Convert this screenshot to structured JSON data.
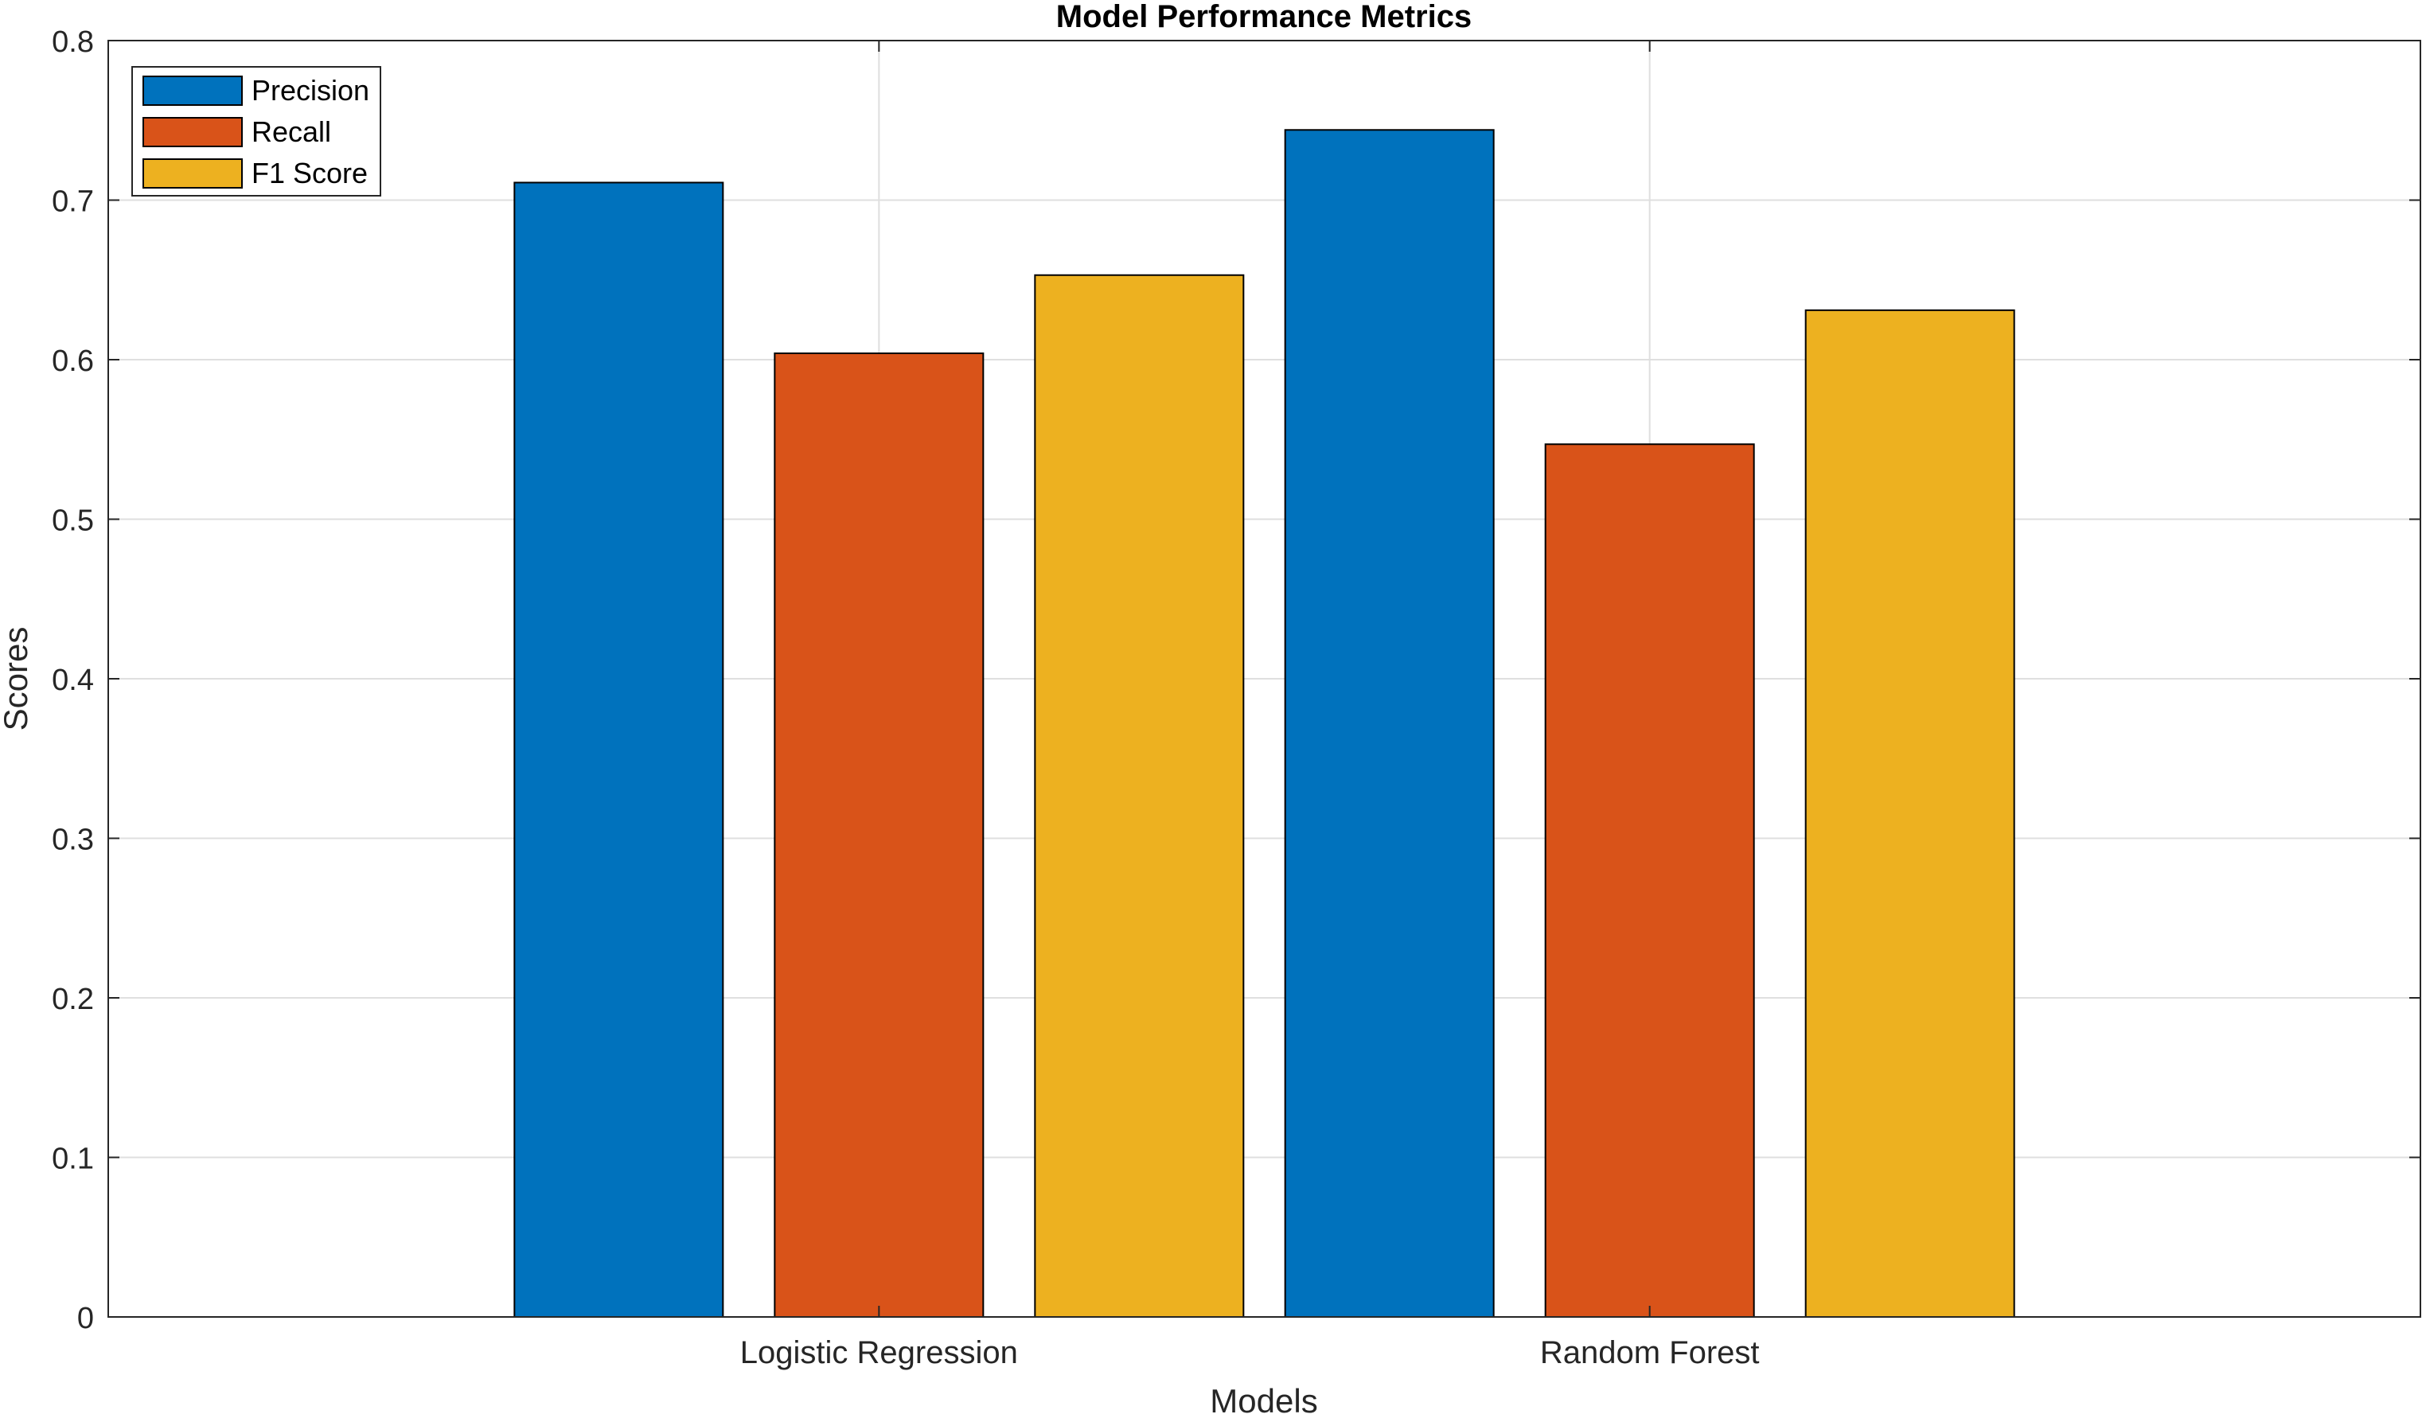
{
  "chart_data": {
    "type": "bar",
    "title": "Model Performance Metrics",
    "xlabel": "Models",
    "ylabel": "Scores",
    "categories": [
      "Logistic Regression",
      "Random Forest"
    ],
    "series": [
      {
        "name": "Precision",
        "values": [
          0.711,
          0.744
        ],
        "color": "#0072BD"
      },
      {
        "name": "Recall",
        "values": [
          0.604,
          0.547
        ],
        "color": "#D95319"
      },
      {
        "name": "F1 Score",
        "values": [
          0.653,
          0.631
        ],
        "color": "#EDB120"
      }
    ],
    "ylim": [
      0,
      0.8
    ],
    "yticks": [
      "0",
      "0.1",
      "0.2",
      "0.3",
      "0.4",
      "0.5",
      "0.6",
      "0.7",
      "0.8"
    ],
    "grid": true,
    "legend_position": "top-left"
  }
}
